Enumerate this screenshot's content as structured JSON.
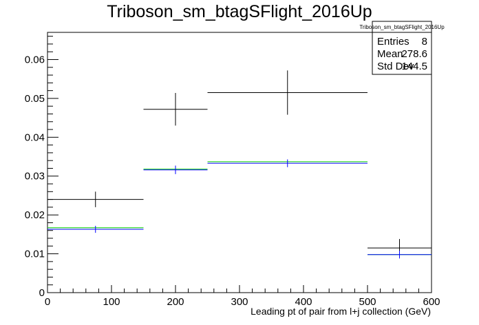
{
  "chart_data": {
    "type": "histogram",
    "title": "Triboson_sm_btagSFlight_2016Up",
    "xlabel": "Leading pt of pair from l+j collection (GeV)",
    "ylabel": "",
    "xlim": [
      0,
      600
    ],
    "ylim": [
      0,
      0.067
    ],
    "x_ticks": [
      0,
      100,
      200,
      300,
      400,
      500,
      600
    ],
    "x_tick_labels": [
      "0",
      "100",
      "200",
      "300",
      "400",
      "500",
      "600"
    ],
    "y_ticks": [
      0,
      0.01,
      0.02,
      0.03,
      0.04,
      0.05,
      0.06
    ],
    "y_tick_labels": [
      "0",
      "0.01",
      "0.02",
      "0.03",
      "0.04",
      "0.05",
      "0.06"
    ],
    "bins": [
      [
        0,
        150
      ],
      [
        150,
        250
      ],
      [
        250,
        500
      ],
      [
        500,
        600
      ]
    ],
    "series": [
      {
        "color": "#000000",
        "values": [
          0.024,
          0.0472,
          0.0515,
          0.0115
        ],
        "errors": [
          0.002,
          0.0042,
          0.0057,
          0.0023
        ]
      },
      {
        "color": "#00cc00",
        "values": [
          0.0167,
          0.0318,
          0.0337,
          0.0098
        ],
        "errors": [
          0,
          0,
          0,
          0
        ]
      },
      {
        "color": "#0000ff",
        "values": [
          0.0163,
          0.0316,
          0.0333,
          0.0098
        ],
        "errors": [
          0.0009,
          0.0011,
          0.001,
          0.001
        ]
      }
    ],
    "legend_position": "top-right",
    "stats": {
      "title": "Triboson_sm_btagSFlight_2016Up",
      "rows": [
        {
          "label": "Entries",
          "value": "8"
        },
        {
          "label": "Mean",
          "value": "278.6"
        },
        {
          "label": "Std Dev",
          "value": "144.5"
        }
      ]
    }
  }
}
